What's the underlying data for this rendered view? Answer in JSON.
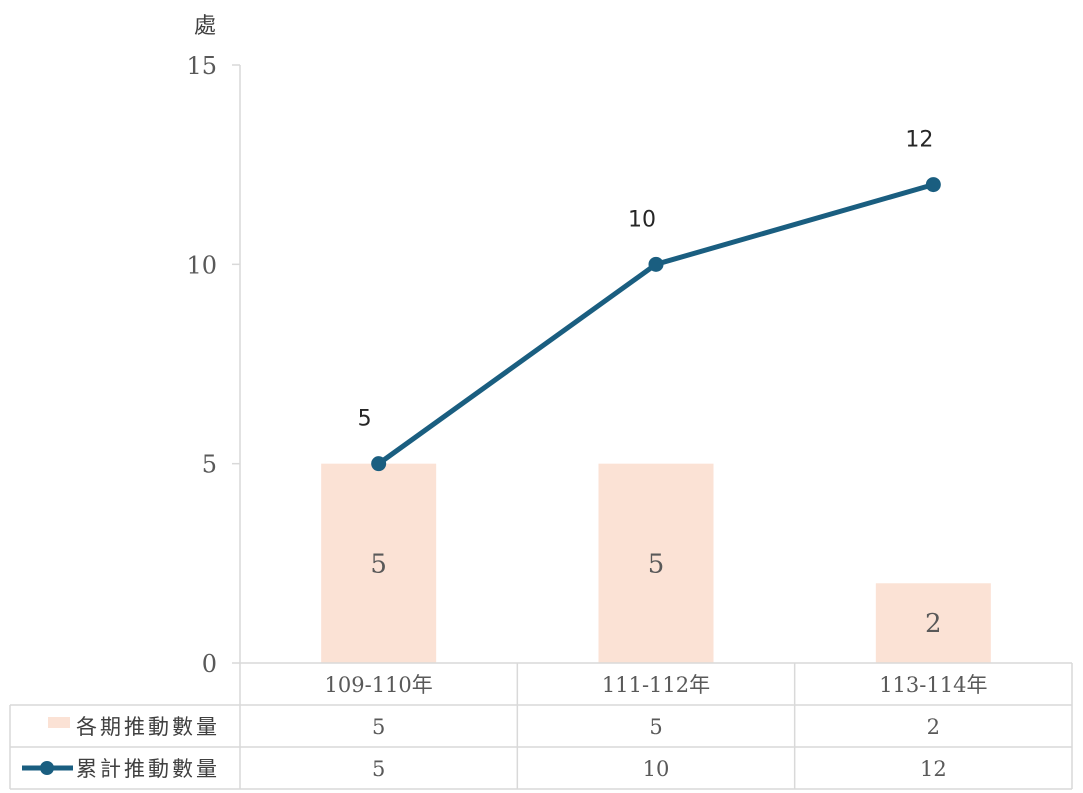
{
  "chart_data": {
    "type": "bar",
    "unit_label": "處",
    "categories": [
      "109-110年",
      "111-112年",
      "113-114年"
    ],
    "ylim": [
      0,
      15
    ],
    "yticks": [
      0,
      5,
      10,
      15
    ],
    "grid": false,
    "series": [
      {
        "name": "各期推動數量",
        "type": "bar",
        "values": [
          5,
          5,
          2
        ],
        "color": "#FBE2D5"
      },
      {
        "name": "累計推動數量",
        "type": "line",
        "values": [
          5,
          10,
          12
        ],
        "color": "#1A5E80"
      }
    ],
    "data_table": true,
    "legend": "data-table-left"
  }
}
